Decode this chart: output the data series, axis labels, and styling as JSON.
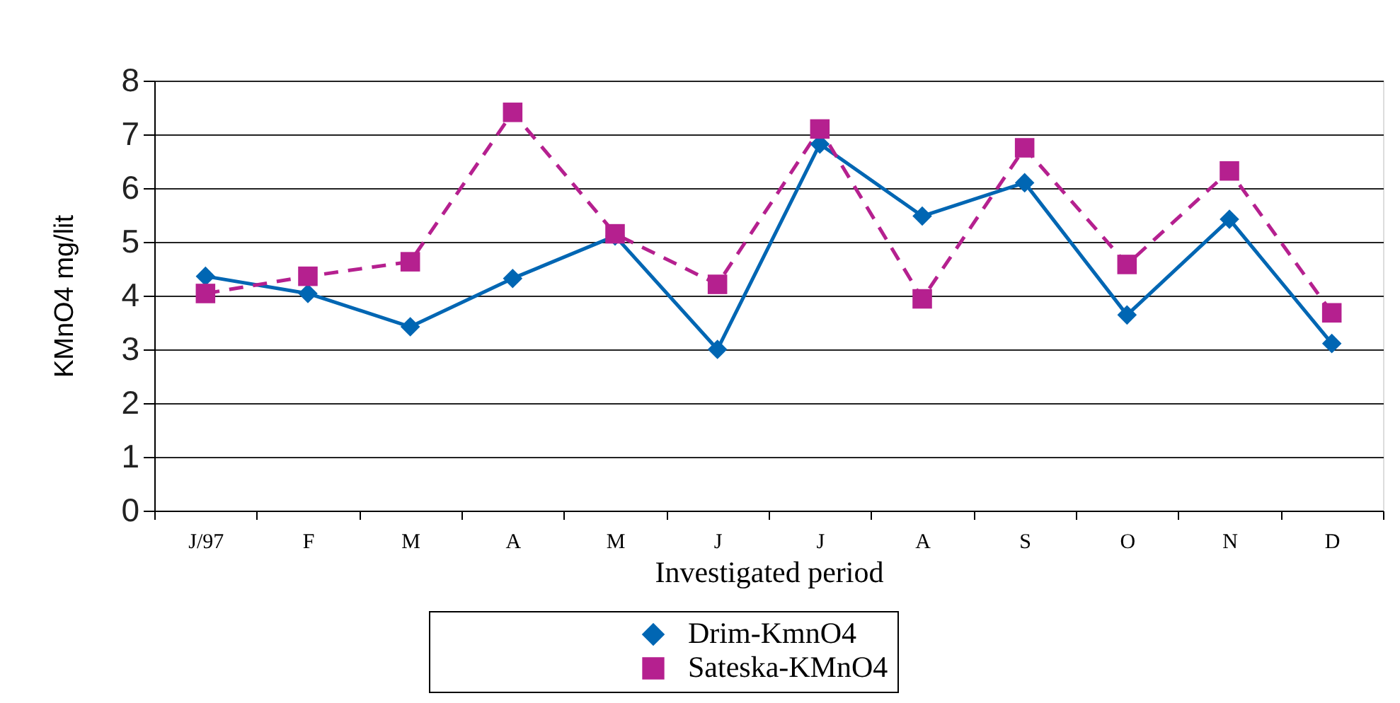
{
  "chart_data": {
    "type": "line",
    "xlabel": "Investigated period",
    "ylabel": "KMnO4 mg/lit",
    "categories": [
      "J/97",
      "F",
      "M",
      "A",
      "M",
      "J",
      "J",
      "A",
      "S",
      "O",
      "N",
      "D"
    ],
    "series": [
      {
        "name": "Drim-KmnO4",
        "color": "#0066b3",
        "marker": "diamond",
        "line_style": "solid",
        "values": [
          4.36,
          4.04,
          3.42,
          4.32,
          5.11,
          3.0,
          6.82,
          5.48,
          6.1,
          3.64,
          5.42,
          3.11
        ]
      },
      {
        "name": "Sateska-KMnO4",
        "color": "#b5208f",
        "marker": "square",
        "line_style": "dashed",
        "values": [
          4.04,
          4.36,
          4.63,
          7.41,
          5.15,
          4.21,
          7.1,
          3.94,
          6.75,
          4.58,
          6.32,
          3.68
        ]
      }
    ],
    "ylim": [
      0,
      8
    ],
    "yticks": [
      0,
      1,
      2,
      3,
      4,
      5,
      6,
      7,
      8
    ],
    "grid": "y",
    "legend": "bottom"
  }
}
